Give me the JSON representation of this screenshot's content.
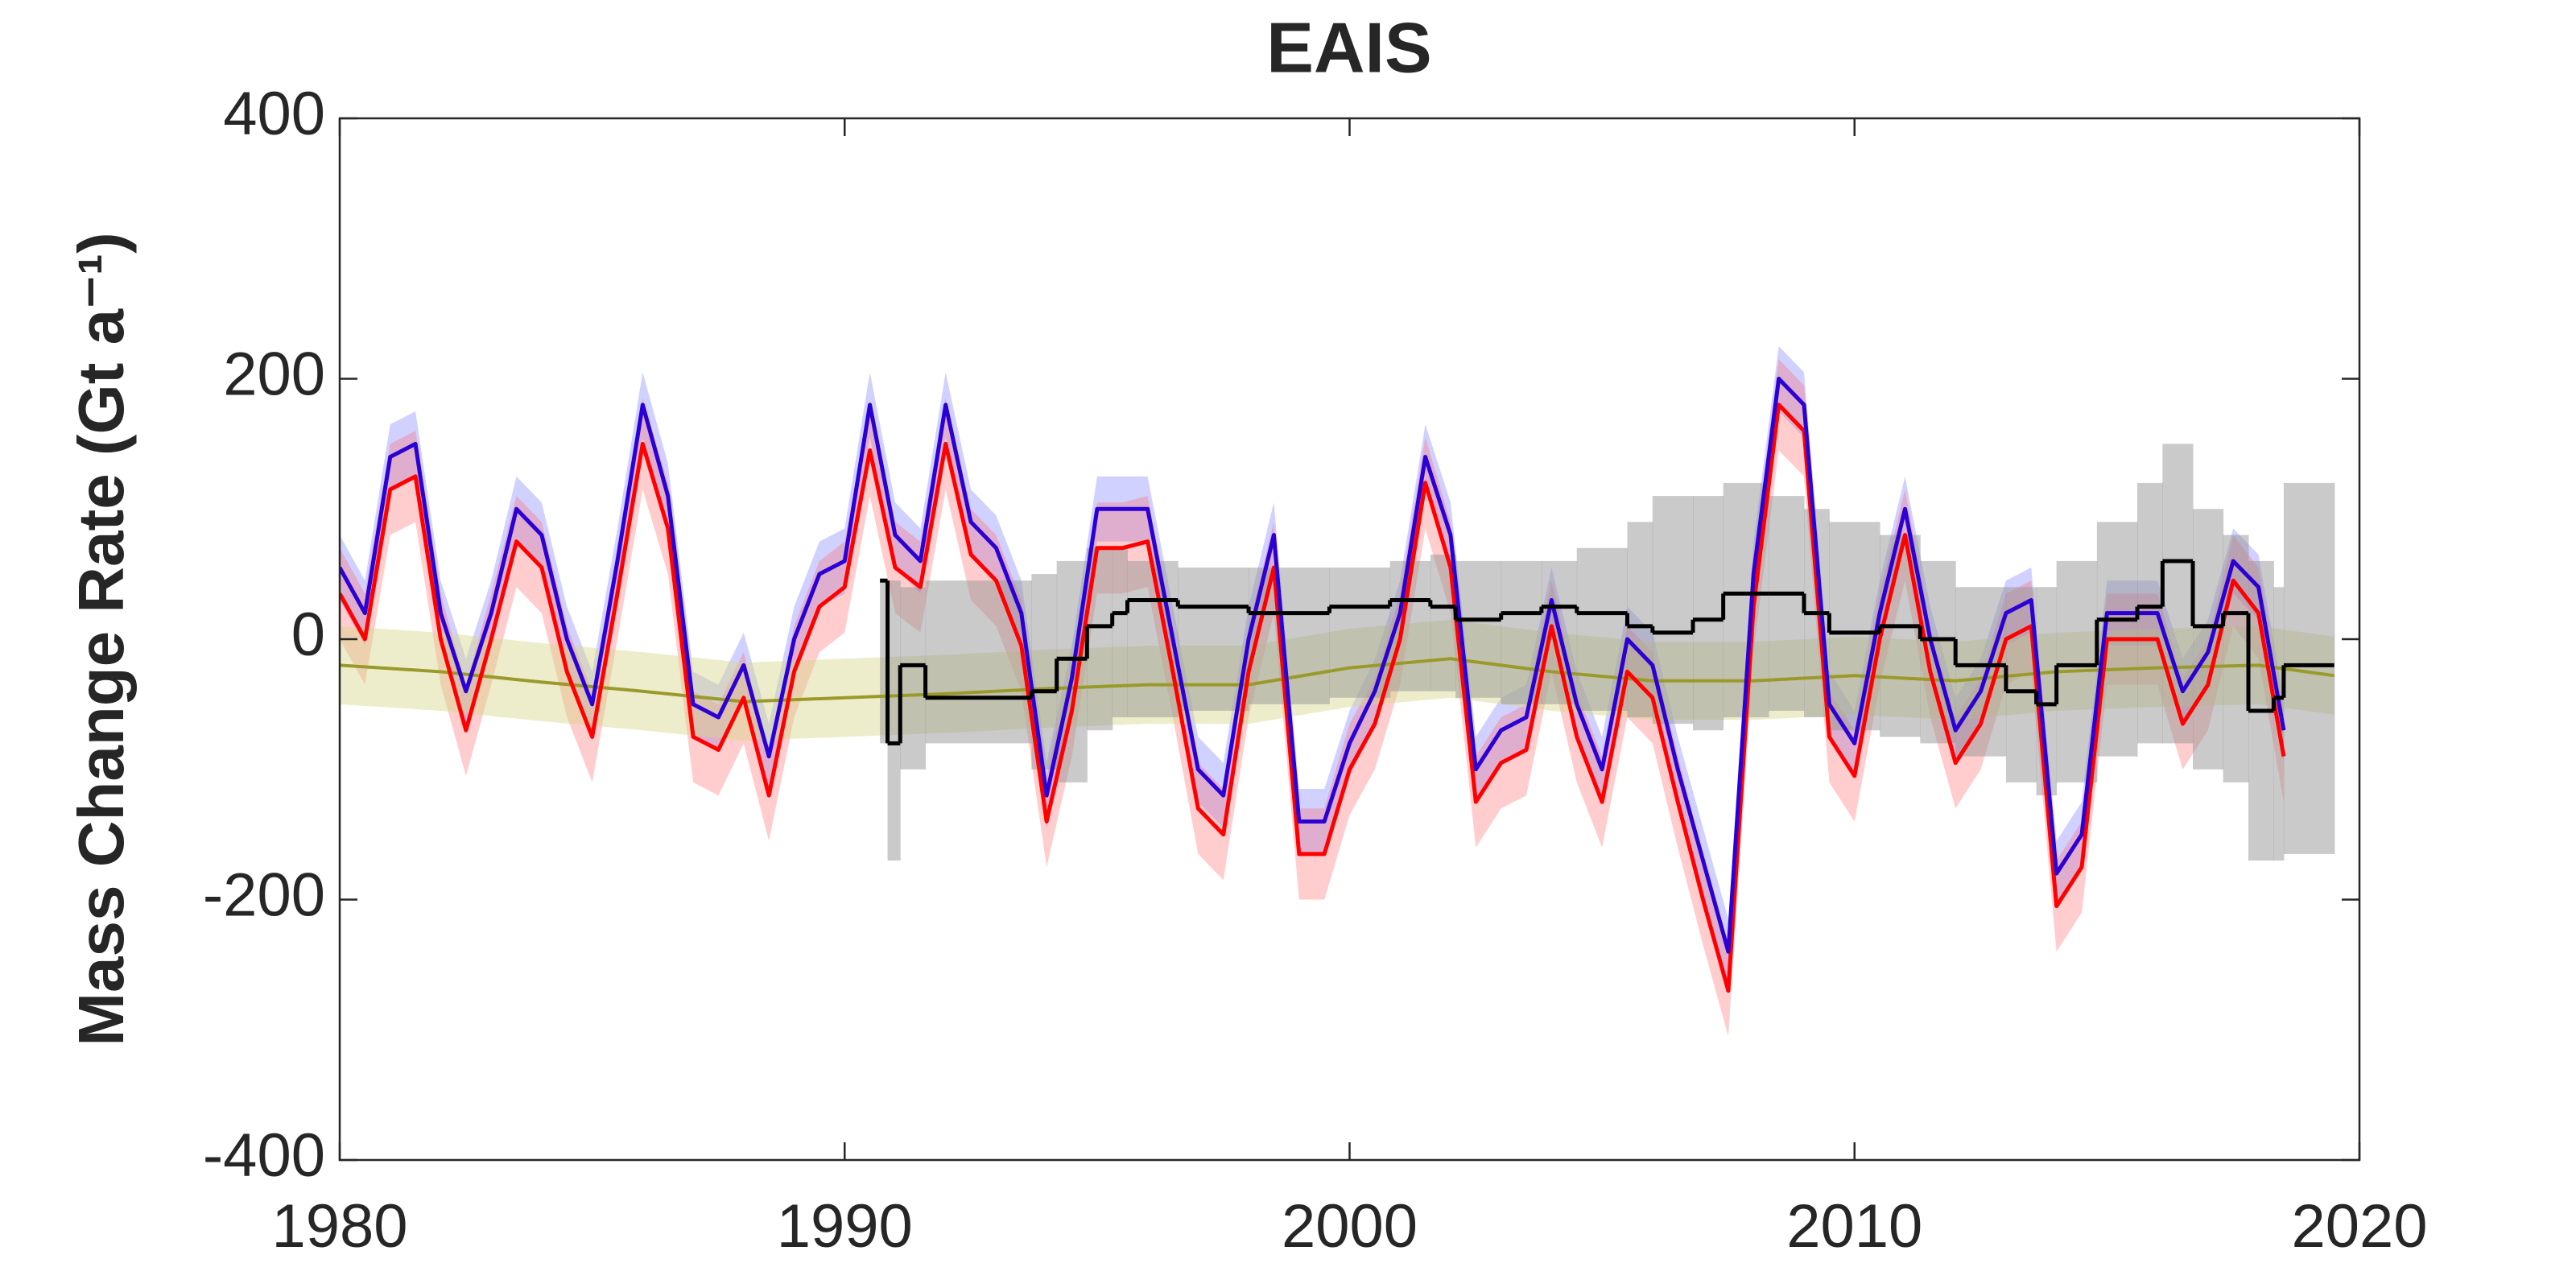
{
  "chart_data": {
    "type": "line",
    "title": "EAIS",
    "ylabel": "Mass Change Rate (Gt a⁻¹)",
    "title_color": "#1a9c1a",
    "xlim": [
      1980,
      2020
    ],
    "xticks": [
      1980,
      1990,
      2000,
      2010,
      2020
    ],
    "ylim": [
      -400,
      400
    ],
    "yticks": [
      -400,
      -200,
      0,
      200,
      400
    ],
    "series": [
      {
        "color": "#2a00d5",
        "band_color": "rgba(90,90,255,0.28)",
        "error": 25,
        "x": [
          1980,
          1980.5,
          1981,
          1981.5,
          1982,
          1982.5,
          1983,
          1983.5,
          1984,
          1984.5,
          1985,
          1985.5,
          1986,
          1986.5,
          1987,
          1987.5,
          1988,
          1988.5,
          1989,
          1989.5,
          1990,
          1990.5,
          1991,
          1991.5,
          1992,
          1992.5,
          1993,
          1993.5,
          1994,
          1994.5,
          1995,
          1995.5,
          1996,
          1996.5,
          1997,
          1997.5,
          1998,
          1998.5,
          1999,
          1999.5,
          2000,
          2000.5,
          2001,
          2001.5,
          2002,
          2002.5,
          2003,
          2003.5,
          2004,
          2004.5,
          2005,
          2005.5,
          2006,
          2006.5,
          2007,
          2007.5,
          2008,
          2008.5,
          2009,
          2009.5,
          2010,
          2010.5,
          2011,
          2011.5,
          2012,
          2012.5,
          2013,
          2013.5,
          2014,
          2014.5,
          2015,
          2015.5,
          2016,
          2016.5,
          2017,
          2017.5,
          2018,
          2018.5
        ],
        "values": [
          55,
          20,
          140,
          150,
          20,
          -40,
          20,
          100,
          80,
          0,
          -50,
          60,
          180,
          110,
          -50,
          -60,
          -20,
          -90,
          0,
          50,
          60,
          180,
          80,
          60,
          180,
          90,
          70,
          20,
          -120,
          -30,
          100,
          100,
          100,
          0,
          -100,
          -120,
          0,
          80,
          -140,
          -140,
          -80,
          -40,
          20,
          140,
          80,
          -100,
          -70,
          -60,
          30,
          -50,
          -100,
          0,
          -20,
          -100,
          -170,
          -240,
          50,
          200,
          180,
          -50,
          -80,
          20,
          100,
          0,
          -70,
          -40,
          20,
          30,
          -180,
          -150,
          20,
          20,
          20,
          -40,
          -10,
          60,
          40,
          -70
        ]
      },
      {
        "color": "#ff0000",
        "band_color": "rgba(255,90,90,0.3)",
        "error": 35,
        "x": [
          1980,
          1980.5,
          1981,
          1981.5,
          1982,
          1982.5,
          1983,
          1983.5,
          1984,
          1984.5,
          1985,
          1985.5,
          1986,
          1986.5,
          1987,
          1987.5,
          1988,
          1988.5,
          1989,
          1989.5,
          1990,
          1990.5,
          1991,
          1991.5,
          1992,
          1992.5,
          1993,
          1993.5,
          1994,
          1994.5,
          1995,
          1995.5,
          1996,
          1996.5,
          1997,
          1997.5,
          1998,
          1998.5,
          1999,
          1999.5,
          2000,
          2000.5,
          2001,
          2001.5,
          2002,
          2002.5,
          2003,
          2003.5,
          2004,
          2004.5,
          2005,
          2005.5,
          2006,
          2006.5,
          2007,
          2007.5,
          2008,
          2008.5,
          2009,
          2009.5,
          2010,
          2010.5,
          2011,
          2011.5,
          2012,
          2012.5,
          2013,
          2013.5,
          2014,
          2014.5,
          2015,
          2015.5,
          2016,
          2016.5,
          2017,
          2017.5,
          2018,
          2018.5
        ],
        "values": [
          35,
          0,
          115,
          125,
          0,
          -70,
          0,
          75,
          55,
          -25,
          -75,
          35,
          150,
          85,
          -75,
          -85,
          -45,
          -120,
          -25,
          25,
          40,
          145,
          55,
          40,
          150,
          65,
          45,
          -5,
          -140,
          -55,
          70,
          70,
          75,
          -25,
          -130,
          -150,
          -25,
          55,
          -165,
          -165,
          -100,
          -65,
          0,
          120,
          55,
          -125,
          -95,
          -85,
          10,
          -75,
          -125,
          -25,
          -45,
          -125,
          -200,
          -270,
          25,
          180,
          160,
          -75,
          -105,
          0,
          80,
          -25,
          -95,
          -65,
          0,
          10,
          -205,
          -175,
          0,
          0,
          0,
          -65,
          -35,
          45,
          20,
          -90
        ]
      },
      {
        "color": "#9a9a2a",
        "band_color": "rgba(215,215,140,0.45)",
        "error": 30,
        "x": [
          1980,
          1982,
          1984,
          1986,
          1988,
          1990,
          1992,
          1994,
          1996,
          1998,
          2000,
          2002,
          2004,
          2006,
          2008,
          2010,
          2012,
          2014,
          2016,
          2018,
          2019.5
        ],
        "values": [
          -20,
          -25,
          -33,
          -40,
          -48,
          -45,
          -42,
          -38,
          -35,
          -35,
          -22,
          -15,
          -25,
          -32,
          -32,
          -28,
          -32,
          -25,
          -22,
          -20,
          -28
        ]
      },
      {
        "color": "#000000",
        "band_color": "rgba(150,150,150,0.5)",
        "step": true,
        "x": [
          1990.7,
          1990.85,
          1991.1,
          1991.6,
          1993.7,
          1994.2,
          1994.8,
          1995.3,
          1995.6,
          1996.6,
          1998,
          1999.6,
          2000.8,
          2001.6,
          2002.1,
          2003,
          2003.8,
          2004.5,
          2005.5,
          2006,
          2006.8,
          2007.4,
          2008.3,
          2009,
          2009.5,
          2010.5,
          2011.3,
          2012,
          2013,
          2013.6,
          2014,
          2014.8,
          2015.6,
          2016.1,
          2016.7,
          2017.3,
          2017.8,
          2018.3,
          2018.5,
          2019.5
        ],
        "values": [
          45,
          -80,
          -20,
          -45,
          -40,
          -15,
          10,
          20,
          30,
          25,
          20,
          25,
          30,
          25,
          15,
          20,
          25,
          20,
          10,
          5,
          15,
          35,
          35,
          20,
          5,
          10,
          0,
          -20,
          -40,
          -50,
          -20,
          15,
          25,
          60,
          10,
          20,
          -55,
          -45,
          -20,
          -20
        ],
        "upper": [
          45,
          45,
          40,
          45,
          50,
          60,
          70,
          70,
          60,
          55,
          55,
          55,
          60,
          65,
          60,
          60,
          60,
          70,
          90,
          110,
          110,
          120,
          110,
          100,
          90,
          80,
          60,
          40,
          40,
          40,
          60,
          90,
          120,
          150,
          100,
          80,
          60,
          40,
          120,
          120
        ],
        "lower": [
          -80,
          -170,
          -100,
          -80,
          -100,
          -110,
          -70,
          -60,
          -60,
          -55,
          -50,
          -45,
          -40,
          -40,
          -45,
          -50,
          -50,
          -55,
          -60,
          -65,
          -70,
          -60,
          -55,
          -60,
          -70,
          -75,
          -80,
          -90,
          -110,
          -120,
          -110,
          -90,
          -80,
          -80,
          -100,
          -110,
          -170,
          -170,
          -165,
          -165
        ]
      }
    ]
  }
}
